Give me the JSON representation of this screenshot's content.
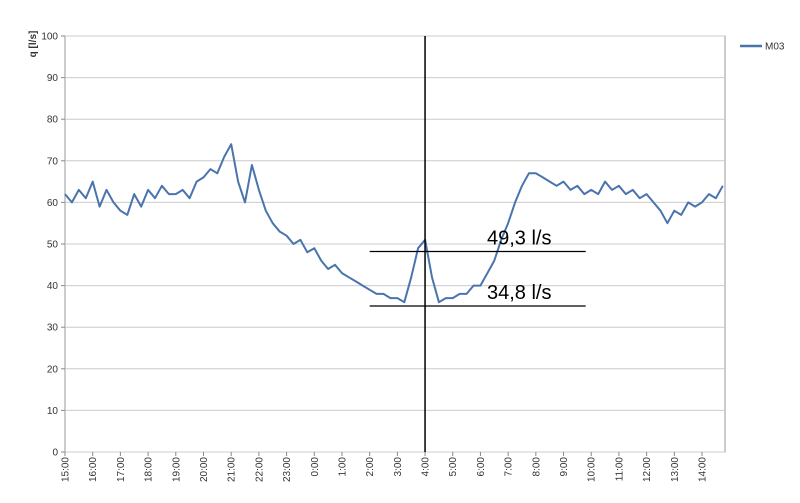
{
  "chart_data": {
    "type": "line",
    "ylabel": "q [l/s]",
    "x": [
      0,
      0.25,
      0.5,
      0.75,
      1,
      1.25,
      1.5,
      1.75,
      2,
      2.25,
      2.5,
      2.75,
      3,
      3.25,
      3.5,
      3.75,
      4,
      4.25,
      4.5,
      4.75,
      5,
      5.25,
      5.5,
      5.75,
      6,
      6.25,
      6.5,
      6.75,
      7,
      7.25,
      7.5,
      7.75,
      8,
      8.25,
      8.5,
      8.75,
      9,
      9.25,
      9.5,
      9.75,
      10,
      10.25,
      10.5,
      10.75,
      11,
      11.25,
      11.5,
      11.75,
      12,
      12.25,
      12.5,
      12.75,
      13,
      13.25,
      13.5,
      13.75,
      14,
      14.25,
      14.5,
      14.75,
      15,
      15.25,
      15.5,
      15.75,
      16,
      16.25,
      16.5,
      16.75,
      17,
      17.25,
      17.5,
      17.75,
      18,
      18.25,
      18.5,
      18.75,
      19,
      19.25,
      19.5,
      19.75,
      20,
      20.25,
      20.5,
      20.75,
      21,
      21.25,
      21.5,
      21.75,
      22,
      22.25,
      22.5,
      22.75,
      23,
      23.25,
      23.5,
      23.75
    ],
    "series": [
      {
        "name": "M03",
        "color": "#4a74ad",
        "values": [
          62,
          60,
          63,
          61,
          65,
          59,
          63,
          60,
          58,
          57,
          62,
          59,
          63,
          61,
          64,
          62,
          62,
          63,
          61,
          65,
          66,
          68,
          67,
          71,
          74,
          65,
          60,
          69,
          63,
          58,
          55,
          53,
          52,
          50,
          51,
          48,
          49,
          46,
          44,
          45,
          43,
          42,
          41,
          40,
          39,
          38,
          38,
          37,
          37,
          36,
          42,
          49,
          51,
          42,
          36,
          37,
          37,
          38,
          38,
          40,
          40,
          43,
          46,
          51,
          55,
          60,
          64,
          67,
          67,
          66,
          65,
          64,
          65,
          63,
          64,
          62,
          63,
          62,
          65,
          63,
          64,
          62,
          63,
          61,
          62,
          60,
          58,
          55,
          58,
          57,
          60,
          59,
          60,
          62,
          61,
          64
        ]
      }
    ],
    "xlim": [
      0,
      23.83
    ],
    "ylim": [
      0,
      100
    ],
    "yticks": [
      0,
      10,
      20,
      30,
      40,
      50,
      60,
      70,
      80,
      90,
      100
    ],
    "xticks": [
      {
        "value": 0,
        "label": "15:00"
      },
      {
        "value": 1,
        "label": "16:00"
      },
      {
        "value": 2,
        "label": "17:00"
      },
      {
        "value": 3,
        "label": "18:00"
      },
      {
        "value": 4,
        "label": "19:00"
      },
      {
        "value": 5,
        "label": "20:00"
      },
      {
        "value": 6,
        "label": "21:00"
      },
      {
        "value": 7,
        "label": "22:00"
      },
      {
        "value": 8,
        "label": "23:00"
      },
      {
        "value": 9,
        "label": "0:00"
      },
      {
        "value": 10,
        "label": "1:00"
      },
      {
        "value": 11,
        "label": "2:00"
      },
      {
        "value": 12,
        "label": "3:00"
      },
      {
        "value": 13,
        "label": "4:00"
      },
      {
        "value": 14,
        "label": "5:00"
      },
      {
        "value": 15,
        "label": "6:00"
      },
      {
        "value": 16,
        "label": "7:00"
      },
      {
        "value": 17,
        "label": "8:00"
      },
      {
        "value": 18,
        "label": "9:00"
      },
      {
        "value": 19,
        "label": "10:00"
      },
      {
        "value": 20,
        "label": "11:00"
      },
      {
        "value": 21,
        "label": "12:00"
      },
      {
        "value": 22,
        "label": "13:00"
      },
      {
        "value": 23,
        "label": "14:00"
      }
    ],
    "grid": true,
    "legend": "right",
    "vline_x": 13,
    "annotations": [
      {
        "text": "49,3 l/s",
        "y": 48.2,
        "x_from": 11,
        "x_to": 18.8
      },
      {
        "text": "34,8 l/s",
        "y": 35.1,
        "x_from": 11,
        "x_to": 18.8
      }
    ]
  }
}
